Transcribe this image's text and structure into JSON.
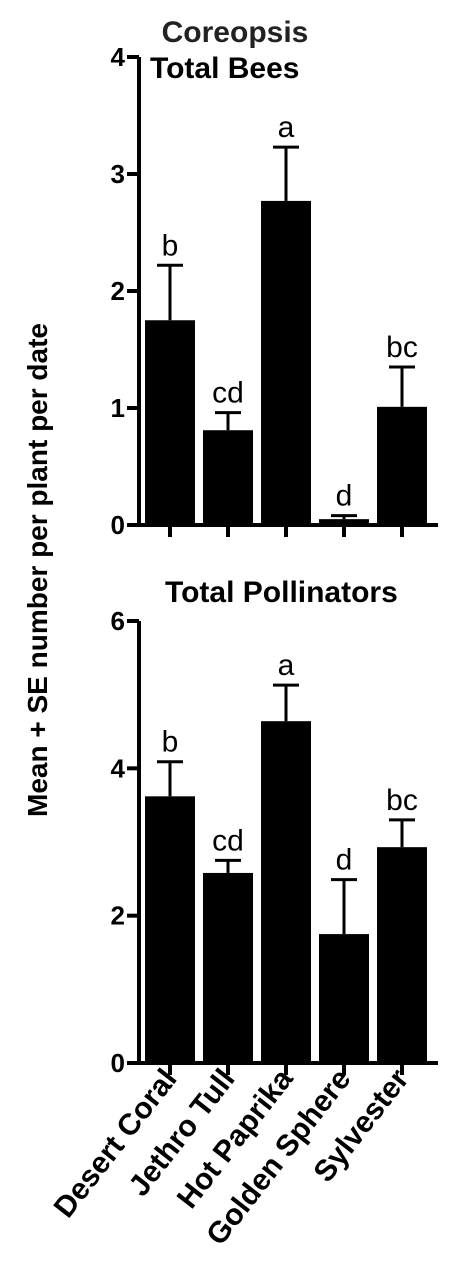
{
  "figure": {
    "title": "Coreopsis",
    "ylabel": "Mean + SE number per plant per date",
    "categories": [
      "Desert Coral",
      "Jethro Tull",
      "Hot Paprika",
      "Golden Sphere",
      "Sylvester"
    ],
    "bar_color": "#000000"
  },
  "chart_data": [
    {
      "type": "bar",
      "title": "Total Bees",
      "categories": [
        "Desert Coral",
        "Jethro Tull",
        "Hot Paprika",
        "Golden Sphere",
        "Sylvester"
      ],
      "values": [
        1.75,
        0.81,
        2.77,
        0.05,
        1.01
      ],
      "errors": [
        0.47,
        0.15,
        0.46,
        0.03,
        0.34
      ],
      "letters": [
        "b",
        "cd",
        "a",
        "d",
        "bc"
      ],
      "ylim": [
        0,
        4
      ],
      "yticks": [
        0,
        1,
        2,
        3,
        4
      ],
      "xlabel": "",
      "ylabel": "Mean + SE number per plant per date",
      "grid": false
    },
    {
      "type": "bar",
      "title": "Total Pollinators",
      "categories": [
        "Desert Coral",
        "Jethro Tull",
        "Hot Paprika",
        "Golden Sphere",
        "Sylvester"
      ],
      "values": [
        3.62,
        2.58,
        4.64,
        1.75,
        2.93
      ],
      "errors": [
        0.47,
        0.17,
        0.49,
        0.74,
        0.37
      ],
      "letters": [
        "b",
        "cd",
        "a",
        "d",
        "bc"
      ],
      "ylim": [
        0,
        6
      ],
      "yticks": [
        0,
        2,
        4,
        6
      ],
      "xlabel": "",
      "ylabel": "Mean + SE number per plant per date",
      "grid": false
    }
  ]
}
